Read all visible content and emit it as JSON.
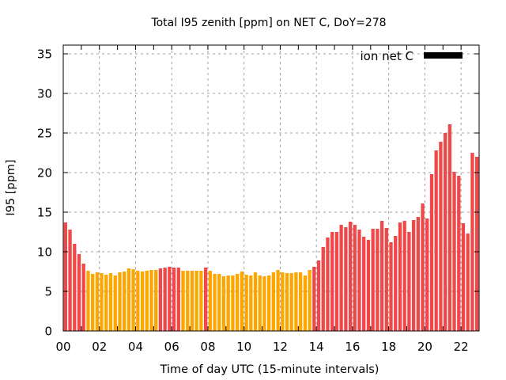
{
  "chart_data": {
    "type": "bar",
    "title": "Total I95 zenith [ppm] on NET C, DoY=278",
    "xlabel": "Time of day UTC (15-minute intervals)",
    "ylabel": "I95 [ppm]",
    "xlim": [
      0,
      23
    ],
    "ylim": [
      0,
      36.1
    ],
    "grid": true,
    "legend": {
      "label": "ion net C",
      "placement": "top-right",
      "color": "#000000"
    },
    "colors": {
      "high": "#F04848",
      "normal": "#FFA500"
    },
    "xticks": [
      {
        "value": 0,
        "label": "00"
      },
      {
        "value": 2,
        "label": "02"
      },
      {
        "value": 4,
        "label": "04"
      },
      {
        "value": 6,
        "label": "06"
      },
      {
        "value": 8,
        "label": "08"
      },
      {
        "value": 10,
        "label": "10"
      },
      {
        "value": 12,
        "label": "12"
      },
      {
        "value": 14,
        "label": "14"
      },
      {
        "value": 16,
        "label": "16"
      },
      {
        "value": 18,
        "label": "18"
      },
      {
        "value": 20,
        "label": "20"
      },
      {
        "value": 22,
        "label": "22"
      }
    ],
    "yticks": [
      {
        "value": 0,
        "label": "0"
      },
      {
        "value": 5,
        "label": "5"
      },
      {
        "value": 10,
        "label": "10"
      },
      {
        "value": 15,
        "label": "15"
      },
      {
        "value": 20,
        "label": "20"
      },
      {
        "value": 25,
        "label": "25"
      },
      {
        "value": 30,
        "label": "30"
      },
      {
        "value": 35,
        "label": "35"
      }
    ],
    "interval_hours": 0.25,
    "values": [
      13.7,
      12.8,
      11.0,
      9.7,
      8.5,
      7.6,
      7.2,
      7.4,
      7.3,
      7.1,
      7.3,
      7.0,
      7.4,
      7.5,
      7.9,
      7.8,
      7.6,
      7.5,
      7.6,
      7.7,
      7.7,
      7.9,
      8.0,
      8.1,
      8.0,
      8.0,
      7.6,
      7.6,
      7.6,
      7.6,
      7.6,
      8.0,
      7.6,
      7.2,
      7.2,
      6.9,
      7.0,
      7.0,
      7.2,
      7.5,
      7.1,
      7.0,
      7.4,
      7.0,
      6.9,
      7.0,
      7.4,
      7.7,
      7.4,
      7.3,
      7.3,
      7.4,
      7.4,
      7.0,
      7.7,
      8.1,
      8.9,
      10.6,
      11.8,
      12.5,
      12.5,
      13.4,
      13.1,
      13.8,
      13.4,
      12.8,
      11.9,
      11.5,
      12.9,
      12.9,
      13.9,
      13.0,
      11.2,
      12.0,
      13.7,
      13.9,
      12.5,
      14.0,
      14.4,
      16.1,
      14.2,
      19.8,
      22.8,
      23.9,
      25.0,
      26.1,
      20.1,
      19.6,
      13.6,
      12.3,
      22.5,
      22.0
    ],
    "categories": [
      "high",
      "high",
      "high",
      "high",
      "high",
      "normal",
      "normal",
      "normal",
      "normal",
      "normal",
      "normal",
      "normal",
      "normal",
      "normal",
      "normal",
      "normal",
      "normal",
      "normal",
      "normal",
      "normal",
      "normal",
      "high",
      "high",
      "high",
      "high",
      "high",
      "normal",
      "normal",
      "normal",
      "normal",
      "normal",
      "high",
      "normal",
      "normal",
      "normal",
      "normal",
      "normal",
      "normal",
      "normal",
      "normal",
      "normal",
      "normal",
      "normal",
      "normal",
      "normal",
      "normal",
      "normal",
      "normal",
      "normal",
      "normal",
      "normal",
      "normal",
      "normal",
      "normal",
      "normal",
      "high",
      "high",
      "high",
      "high",
      "high",
      "high",
      "high",
      "high",
      "high",
      "high",
      "high",
      "high",
      "high",
      "high",
      "high",
      "high",
      "high",
      "high",
      "high",
      "high",
      "high",
      "high",
      "high",
      "high",
      "high",
      "high",
      "high",
      "high",
      "high",
      "high",
      "high",
      "high",
      "high",
      "high",
      "high",
      "high",
      "high"
    ]
  }
}
